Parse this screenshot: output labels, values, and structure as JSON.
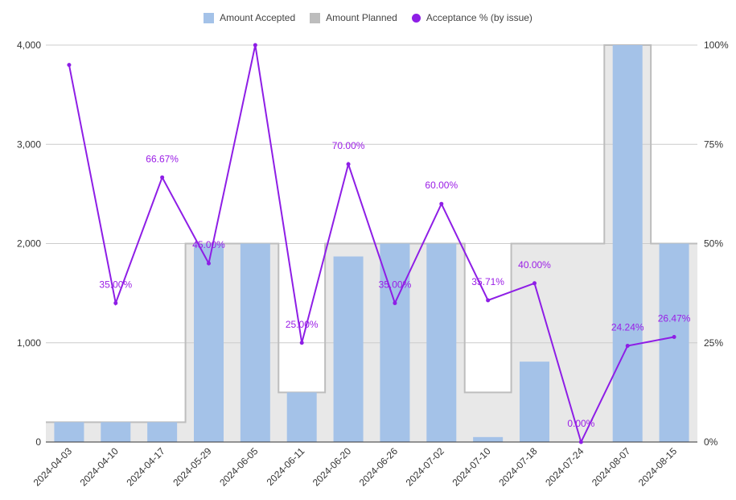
{
  "chart_data": {
    "type": "bar",
    "categories": [
      "2024-04-03",
      "2024-04-10",
      "2024-04-17",
      "2024-05-29",
      "2024-06-05",
      "2024-06-11",
      "2024-06-20",
      "2024-06-26",
      "2024-07-02",
      "2024-07-10",
      "2024-07-18",
      "2024-07-24",
      "2024-08-07",
      "2024-08-15"
    ],
    "series": [
      {
        "name": "Amount Accepted",
        "type": "bar",
        "axis": "left",
        "values": [
          200,
          200,
          200,
          2000,
          2000,
          500,
          1870,
          2000,
          2000,
          50,
          810,
          0,
          4000,
          2000
        ],
        "color": "#a4c2e8"
      },
      {
        "name": "Amount Planned",
        "type": "stepped-area",
        "axis": "left",
        "values": [
          200,
          200,
          200,
          2000,
          2000,
          500,
          2000,
          2000,
          2000,
          500,
          2000,
          2000,
          4000,
          2000
        ],
        "color": "#bdbdbd"
      },
      {
        "name": "Acceptance % (by issue)",
        "type": "line",
        "axis": "right",
        "values": [
          95,
          35,
          66.67,
          45,
          100,
          25,
          70,
          35,
          60,
          35.71,
          40,
          0,
          24.24,
          26.47
        ],
        "labels": [
          "",
          "35.00%",
          "66.67%",
          "45.00%",
          "",
          "25.00%",
          "70.00%",
          "35.00%",
          "60.00%",
          "35.71%",
          "40.00%",
          "0.00%",
          "24.24%",
          "26.47%"
        ],
        "color": "#8e1ee6"
      }
    ],
    "y_left": {
      "min": 0,
      "max": 4000,
      "ticks": [
        0,
        1000,
        2000,
        3000,
        4000
      ],
      "tick_labels": [
        "0",
        "1,000",
        "2,000",
        "3,000",
        "4,000"
      ]
    },
    "y_right": {
      "min": 0,
      "max": 100,
      "ticks": [
        0,
        25,
        50,
        75,
        100
      ],
      "tick_labels": [
        "0%",
        "25%",
        "50%",
        "75%",
        "100%"
      ]
    },
    "grid": true,
    "legend_position": "top-center",
    "title": "",
    "xlabel": "",
    "ylabel": ""
  },
  "legend": {
    "accepted": "Amount Accepted",
    "planned": "Amount Planned",
    "acceptance": "Acceptance % (by issue)"
  },
  "colors": {
    "accepted": "#a4c2e8",
    "planned_fill": "#e8e8e8",
    "planned_stroke": "#bdbdbd",
    "acceptance": "#8e1ee6",
    "label": "#9b1ee6",
    "grid": "#cccccc",
    "axis_text": "#333333"
  }
}
